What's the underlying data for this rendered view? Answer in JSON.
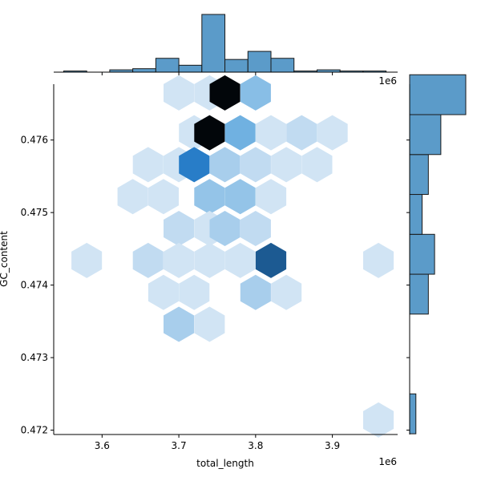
{
  "chart_data": {
    "type": "hexbin-joint",
    "xlabel": "total_length",
    "ylabel": "GC_content",
    "x_multiplier": "1e6",
    "y_multiplier": "1e6",
    "xlim": [
      3.537,
      3.985
    ],
    "ylim": [
      0.47194,
      0.47677
    ],
    "x_ticks": [
      3.6,
      3.7,
      3.8,
      3.9
    ],
    "x_tick_labels": [
      "3.6",
      "3.7",
      "3.8",
      "3.9"
    ],
    "y_ticks": [
      0.472,
      0.473,
      0.474,
      0.475,
      0.476
    ],
    "y_tick_labels": [
      "0.472",
      "0.473",
      "0.474",
      "0.475",
      "0.476"
    ],
    "colors": {
      "marginal_fill": "#5b9bc9",
      "edge": "#1a1a1a"
    },
    "hexbins": [
      {
        "x": 3.7,
        "y": 0.47665,
        "level": 0.12
      },
      {
        "x": 3.74,
        "y": 0.47665,
        "level": 0.12
      },
      {
        "x": 3.76,
        "y": 0.47665,
        "level": 1.0
      },
      {
        "x": 3.8,
        "y": 0.47665,
        "level": 0.45
      },
      {
        "x": 3.72,
        "y": 0.4761,
        "level": 0.12
      },
      {
        "x": 3.74,
        "y": 0.4761,
        "level": 1.0
      },
      {
        "x": 3.78,
        "y": 0.4761,
        "level": 0.55
      },
      {
        "x": 3.82,
        "y": 0.4761,
        "level": 0.12
      },
      {
        "x": 3.86,
        "y": 0.4761,
        "level": 0.22
      },
      {
        "x": 3.9,
        "y": 0.4761,
        "level": 0.12
      },
      {
        "x": 3.66,
        "y": 0.47566,
        "level": 0.12
      },
      {
        "x": 3.7,
        "y": 0.47566,
        "level": 0.12
      },
      {
        "x": 3.72,
        "y": 0.47566,
        "level": 0.8
      },
      {
        "x": 3.76,
        "y": 0.47566,
        "level": 0.32
      },
      {
        "x": 3.8,
        "y": 0.47566,
        "level": 0.22
      },
      {
        "x": 3.84,
        "y": 0.47566,
        "level": 0.12
      },
      {
        "x": 3.88,
        "y": 0.47566,
        "level": 0.12
      },
      {
        "x": 3.64,
        "y": 0.47522,
        "level": 0.12
      },
      {
        "x": 3.68,
        "y": 0.47522,
        "level": 0.12
      },
      {
        "x": 3.74,
        "y": 0.47522,
        "level": 0.4
      },
      {
        "x": 3.78,
        "y": 0.47522,
        "level": 0.4
      },
      {
        "x": 3.82,
        "y": 0.47522,
        "level": 0.12
      },
      {
        "x": 3.7,
        "y": 0.47478,
        "level": 0.22
      },
      {
        "x": 3.74,
        "y": 0.47478,
        "level": 0.12
      },
      {
        "x": 3.76,
        "y": 0.47478,
        "level": 0.32
      },
      {
        "x": 3.8,
        "y": 0.47478,
        "level": 0.22
      },
      {
        "x": 3.58,
        "y": 0.47434,
        "level": 0.12
      },
      {
        "x": 3.66,
        "y": 0.47434,
        "level": 0.22
      },
      {
        "x": 3.7,
        "y": 0.47434,
        "level": 0.12
      },
      {
        "x": 3.74,
        "y": 0.47434,
        "level": 0.12
      },
      {
        "x": 3.78,
        "y": 0.47434,
        "level": 0.12
      },
      {
        "x": 3.82,
        "y": 0.47434,
        "level": 0.85
      },
      {
        "x": 3.96,
        "y": 0.47434,
        "level": 0.12
      },
      {
        "x": 3.68,
        "y": 0.4739,
        "level": 0.12
      },
      {
        "x": 3.72,
        "y": 0.4739,
        "level": 0.12
      },
      {
        "x": 3.8,
        "y": 0.4739,
        "level": 0.32
      },
      {
        "x": 3.84,
        "y": 0.4739,
        "level": 0.12
      },
      {
        "x": 3.7,
        "y": 0.47346,
        "level": 0.32
      },
      {
        "x": 3.74,
        "y": 0.47346,
        "level": 0.12
      },
      {
        "x": 3.96,
        "y": 0.47214,
        "level": 0.12
      }
    ],
    "x_marginal": {
      "bin_edges": [
        3.55,
        3.58,
        3.61,
        3.64,
        3.67,
        3.7,
        3.73,
        3.76,
        3.79,
        3.82,
        3.85,
        3.88,
        3.91,
        3.94,
        3.97
      ],
      "counts": [
        1,
        0,
        2,
        3,
        12,
        6,
        50,
        11,
        18,
        12,
        1,
        2,
        1,
        1
      ]
    },
    "y_marginal": {
      "bin_edges": [
        0.47195,
        0.4725,
        0.47305,
        0.4736,
        0.47415,
        0.4747,
        0.47525,
        0.4758,
        0.47635,
        0.4769
      ],
      "counts": [
        1,
        0,
        0,
        3,
        4,
        2,
        3,
        5,
        9
      ]
    }
  }
}
